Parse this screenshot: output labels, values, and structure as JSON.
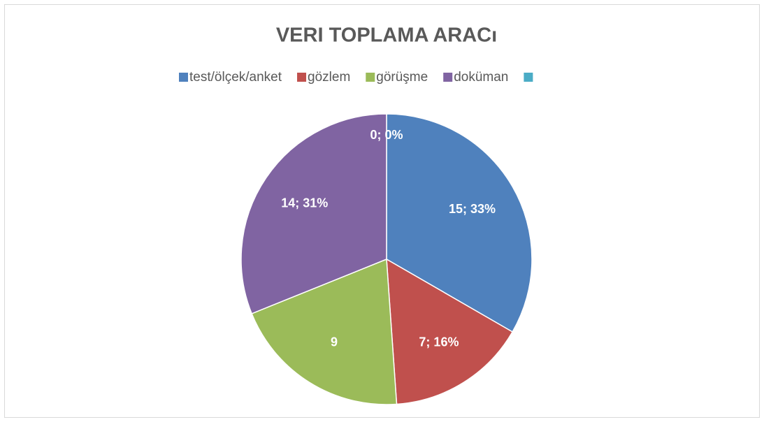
{
  "chart_data": {
    "type": "pie",
    "title": "VERI TOPLAMA ARACı",
    "categories": [
      "test/ölçek/anket",
      "gözlem",
      "görüşme",
      "doküman",
      null
    ],
    "values": [
      15,
      7,
      9,
      14,
      0
    ],
    "value_labels": [
      "15; 33%",
      "7; 16%",
      "9",
      "14; 31%",
      "0; 0%"
    ],
    "colors": [
      "#4f81bd",
      "#c0504d",
      "#9bbb59",
      "#8064a2",
      "#4bacc6"
    ],
    "legend": "top"
  }
}
